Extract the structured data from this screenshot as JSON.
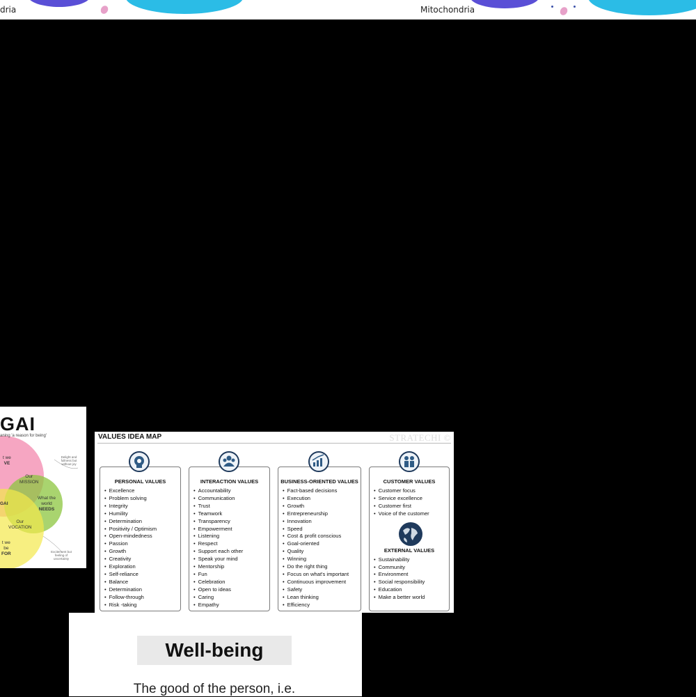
{
  "top_strip": {
    "left_label": "dria",
    "right_label": "Mitochondria"
  },
  "ikigai": {
    "title": "GAI",
    "subtitle": "aning 'a reason for being'",
    "labels": {
      "love_part": "t we",
      "love_bold": "VE",
      "mission_a": "Our",
      "mission_b": "MISSION",
      "center": "GAI",
      "needs_a": "What the",
      "needs_b": "world",
      "needs_c": "NEEDS",
      "vocation_a": "Our",
      "vocation_b": "VOCATION",
      "paid_a": "t we",
      "paid_b": "be",
      "paid_bold": "FOR"
    },
    "notes": {
      "top_right": "Delight and fullness but without joy",
      "bottom_right": "Excitement but feeling of uncertainty"
    }
  },
  "values_map": {
    "heading": "VALUES IDEA MAP",
    "brand": "STRATECHI ©",
    "columns": [
      {
        "title": "PERSONAL VALUES",
        "icon": "brain-gears-icon",
        "items": [
          "Excellence",
          "Problem solving",
          "Integrity",
          "Humility",
          "Determination",
          "Positivity / Optimism",
          "Open-mindedness",
          "Passion",
          "Growth",
          "Creativity",
          "Exploration",
          "Self-reliance",
          "Balance",
          "Determination",
          "Follow-through",
          "Risk -taking"
        ]
      },
      {
        "title": "INTERACTION VALUES",
        "icon": "people-group-icon",
        "items": [
          "Accountability",
          "Communication",
          "Trust",
          "Teamwork",
          "Transparency",
          "Empowerment",
          "Listening",
          "Respect",
          "Support each other",
          "Speak your mind",
          "Mentorship",
          "Fun",
          "Celebration",
          "Open to ideas",
          "Caring",
          "Empathy"
        ]
      },
      {
        "title": "BUSINESS-ORIENTED VALUES",
        "icon": "growth-chart-icon",
        "items": [
          "Fact-based decisions",
          "Execution",
          "Growth",
          "Entrepreneurship",
          "Innovation",
          "Speed",
          "Cost & profit conscious",
          "Goal-oriented",
          "Quality",
          "Winning",
          "Do the right thing",
          "Focus on what's important",
          "Continuous improvement",
          "Safety",
          "Lean thinking",
          "Efficiency"
        ]
      },
      {
        "title": "CUSTOMER VALUES",
        "icon": "customers-icon",
        "items": [
          "Customer focus",
          "Service excellence",
          "Customer first",
          "Voice of the customer"
        ],
        "sub_title": "EXTERNAL VALUES",
        "sub_icon": "globe-icon",
        "sub_items": [
          "Sustainability",
          "Community",
          "Environment",
          "Social responsibility",
          "Education",
          "Make a better world"
        ]
      }
    ]
  },
  "wellbeing": {
    "title": "Well-being",
    "body": "The good of the person, i.e."
  },
  "colors": {
    "navy": "#1f3a5c",
    "venn_pink": "#f06a9a",
    "venn_green": "#8cc63f",
    "venn_yellow": "#f4e84c",
    "venn_tan": "#c9a56a",
    "cell_blue": "#28b9e6",
    "cell_purple": "#5a4fd6"
  }
}
